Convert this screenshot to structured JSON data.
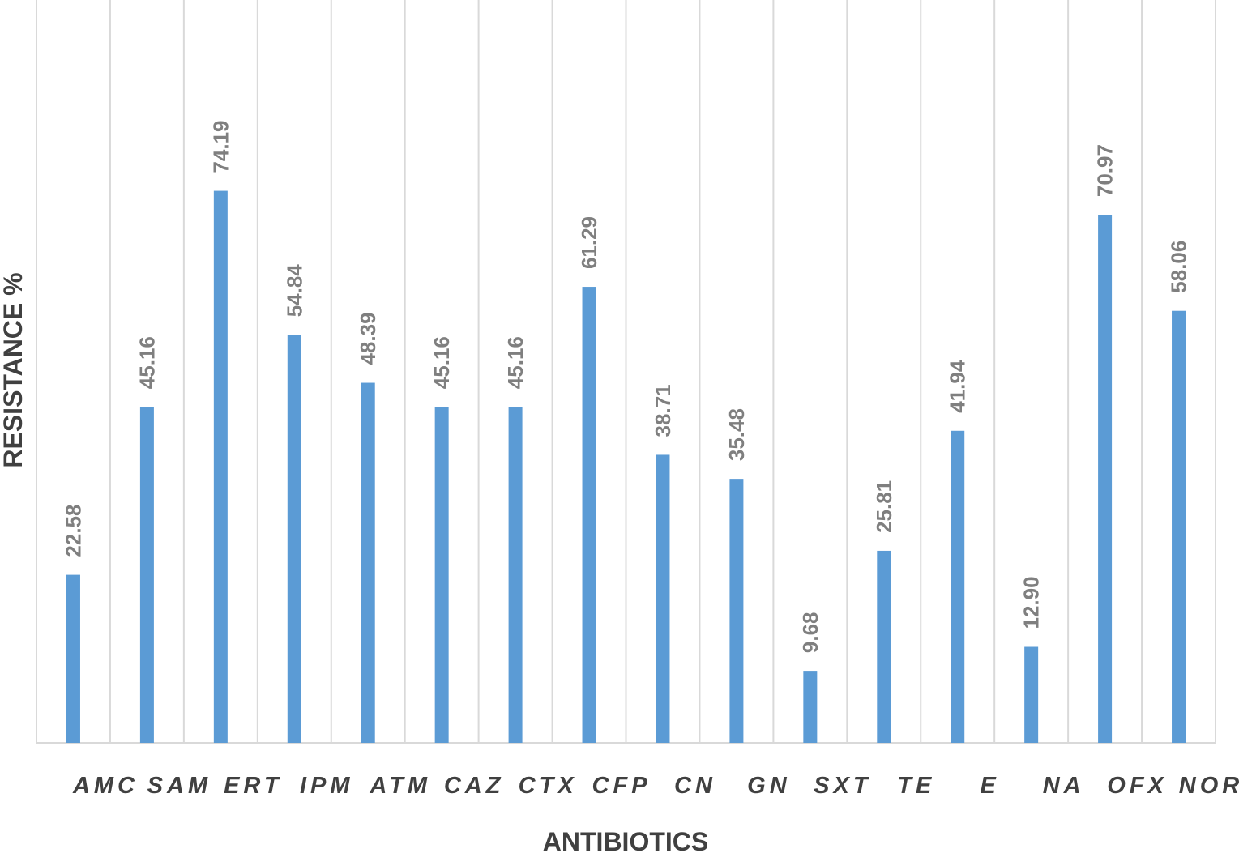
{
  "chart_data": {
    "type": "bar",
    "title": "",
    "xlabel": "ANTIBIOTICS",
    "ylabel": "RESISTANCE %",
    "categories": [
      "AMC",
      "SAM",
      "ERT",
      "IPM",
      "ATM",
      "CAZ",
      "CTX",
      "CFP",
      "CN",
      "GN",
      "SXT",
      "TE",
      "E",
      "NA",
      "OFX",
      "NOR"
    ],
    "values": [
      22.58,
      45.16,
      74.19,
      54.84,
      48.39,
      45.16,
      45.16,
      61.29,
      38.71,
      35.48,
      9.68,
      25.81,
      41.94,
      12.9,
      70.97,
      58.06
    ],
    "value_labels": [
      "22.58",
      "45.16",
      "74.19",
      "54.84",
      "48.39",
      "45.16",
      "45.16",
      "61.29",
      "38.71",
      "35.48",
      "9.68",
      "25.81",
      "41.94",
      "12.90",
      "70.97",
      "58.06"
    ],
    "ylim": [
      0,
      100
    ],
    "grid": "vertical",
    "legend": "none",
    "bar_color": "#5b9bd5",
    "grid_color": "#d9d9d9",
    "label_color": "#7f7f7f",
    "axis_text_color": "#404040"
  }
}
